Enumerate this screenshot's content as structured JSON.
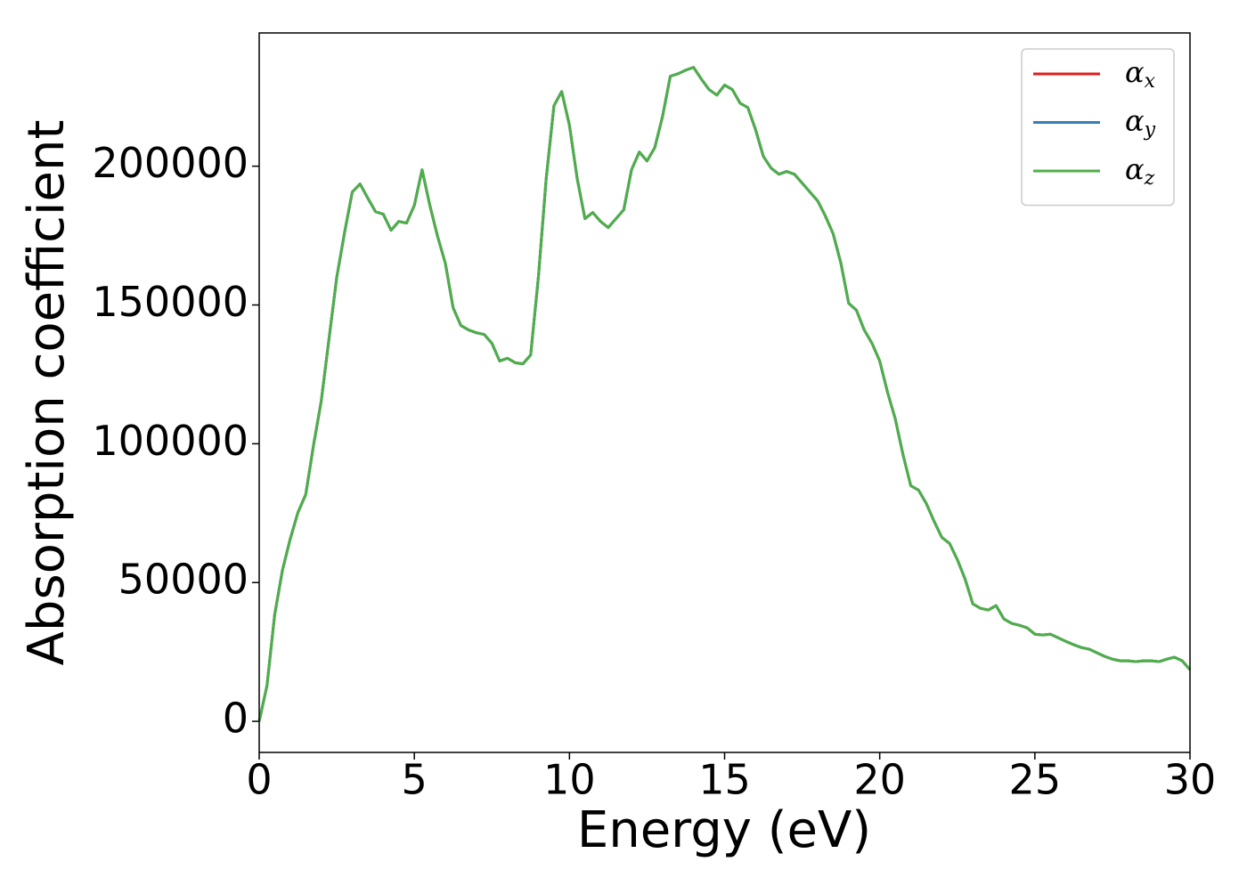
{
  "chart_data": {
    "type": "line",
    "x_label": "Energy (eV)",
    "y_label": "Absorption coefficient",
    "x": [
      0,
      0.25,
      0.5,
      0.75,
      1,
      1.25,
      1.5,
      1.75,
      2,
      2.25,
      2.5,
      2.75,
      3,
      3.25,
      3.5,
      3.75,
      4,
      4.25,
      4.5,
      4.75,
      5,
      5.25,
      5.5,
      5.75,
      6,
      6.25,
      6.5,
      6.75,
      7,
      7.25,
      7.5,
      7.75,
      8,
      8.25,
      8.5,
      8.75,
      9,
      9.25,
      9.5,
      9.75,
      10,
      10.25,
      10.5,
      10.75,
      11,
      11.25,
      11.5,
      11.75,
      12,
      12.25,
      12.5,
      12.75,
      13,
      13.25,
      13.5,
      13.75,
      14,
      14.25,
      14.5,
      14.75,
      15,
      15.25,
      15.5,
      15.75,
      16,
      16.25,
      16.5,
      16.75,
      17,
      17.25,
      17.5,
      17.75,
      18,
      18.25,
      18.5,
      18.75,
      19,
      19.25,
      19.5,
      19.75,
      20,
      20.25,
      20.5,
      20.75,
      21,
      21.25,
      21.5,
      21.75,
      22,
      22.25,
      22.5,
      22.75,
      23,
      23.25,
      23.5,
      23.75,
      24,
      24.25,
      24.5,
      24.75,
      25,
      25.25,
      25.5,
      25.75,
      26,
      26.25,
      26.5,
      26.75,
      27,
      27.25,
      27.5,
      27.75,
      28,
      28.25,
      28.5,
      28.75,
      29,
      29.25,
      29.5,
      29.75,
      30
    ],
    "series": [
      {
        "name": "αx",
        "color": "#e41a1c",
        "values": [
          0,
          12800,
          38500,
          54500,
          65700,
          75300,
          81700,
          99400,
          115400,
          137800,
          160000,
          176000,
          190700,
          193600,
          188500,
          183600,
          182700,
          176900,
          180100,
          179500,
          185900,
          198700,
          185900,
          174700,
          165000,
          149000,
          142600,
          141000,
          140000,
          139400,
          136200,
          129800,
          130800,
          129200,
          128800,
          132000,
          160200,
          195500,
          221800,
          226900,
          214700,
          195500,
          181100,
          183300,
          180100,
          177900,
          181100,
          184300,
          198700,
          205100,
          201900,
          206700,
          217900,
          232400,
          233300,
          234600,
          235600,
          231400,
          227600,
          225600,
          229200,
          227600,
          222700,
          221100,
          213100,
          203500,
          199300,
          197100,
          198100,
          197100,
          193900,
          190700,
          187500,
          182000,
          175600,
          165000,
          150600,
          148100,
          141000,
          136200,
          129800,
          118600,
          109000,
          96100,
          84900,
          83300,
          78500,
          72100,
          66300,
          64100,
          58300,
          51300,
          42300,
          40700,
          40100,
          41700,
          36900,
          35300,
          34600,
          33700,
          31400,
          31100,
          31400,
          30100,
          28800,
          27600,
          26600,
          26000,
          24700,
          23400,
          22400,
          21800,
          21800,
          21500,
          21800,
          21800,
          21500,
          22400,
          23100,
          21800,
          18600
        ]
      },
      {
        "name": "αy",
        "color": "#377eb8",
        "values": [
          0,
          12800,
          38500,
          54500,
          65700,
          75300,
          81700,
          99400,
          115400,
          137800,
          160000,
          176000,
          190700,
          193600,
          188500,
          183600,
          182700,
          176900,
          180100,
          179500,
          185900,
          198700,
          185900,
          174700,
          165000,
          149000,
          142600,
          141000,
          140000,
          139400,
          136200,
          129800,
          130800,
          129200,
          128800,
          132000,
          160200,
          195500,
          221800,
          226900,
          214700,
          195500,
          181100,
          183300,
          180100,
          177900,
          181100,
          184300,
          198700,
          205100,
          201900,
          206700,
          217900,
          232400,
          233300,
          234600,
          235600,
          231400,
          227600,
          225600,
          229200,
          227600,
          222700,
          221100,
          213100,
          203500,
          199300,
          197100,
          198100,
          197100,
          193900,
          190700,
          187500,
          182000,
          175600,
          165000,
          150600,
          148100,
          141000,
          136200,
          129800,
          118600,
          109000,
          96100,
          84900,
          83300,
          78500,
          72100,
          66300,
          64100,
          58300,
          51300,
          42300,
          40700,
          40100,
          41700,
          36900,
          35300,
          34600,
          33700,
          31400,
          31100,
          31400,
          30100,
          28800,
          27600,
          26600,
          26000,
          24700,
          23400,
          22400,
          21800,
          21800,
          21500,
          21800,
          21800,
          21500,
          22400,
          23100,
          21800,
          18600
        ]
      },
      {
        "name": "αz",
        "color": "#4daf4a",
        "values": [
          0,
          12800,
          38500,
          54500,
          65700,
          75300,
          81700,
          99400,
          115400,
          137800,
          160000,
          176000,
          190700,
          193600,
          188500,
          183600,
          182700,
          176900,
          180100,
          179500,
          185900,
          198700,
          185900,
          174700,
          165000,
          149000,
          142600,
          141000,
          140000,
          139400,
          136200,
          129800,
          130800,
          129200,
          128800,
          132000,
          160200,
          195500,
          221800,
          226900,
          214700,
          195500,
          181100,
          183300,
          180100,
          177900,
          181100,
          184300,
          198700,
          205100,
          201900,
          206700,
          217900,
          232400,
          233300,
          234600,
          235600,
          231400,
          227600,
          225600,
          229200,
          227600,
          222700,
          221100,
          213100,
          203500,
          199300,
          197100,
          198100,
          197100,
          193900,
          190700,
          187500,
          182000,
          175600,
          165000,
          150600,
          148100,
          141000,
          136200,
          129800,
          118600,
          109000,
          96100,
          84900,
          83300,
          78500,
          72100,
          66300,
          64100,
          58300,
          51300,
          42300,
          40700,
          40100,
          41700,
          36900,
          35300,
          34600,
          33700,
          31400,
          31100,
          31400,
          30100,
          28800,
          27600,
          26600,
          26000,
          24700,
          23400,
          22400,
          21800,
          21800,
          21500,
          21800,
          21800,
          21500,
          22400,
          23100,
          21800,
          18600
        ]
      }
    ],
    "xlim": [
      0,
      30
    ],
    "xticks": [
      0,
      5,
      10,
      15,
      20,
      25,
      30
    ],
    "ylim": [
      -11200,
      248000
    ],
    "yticks": [
      0,
      50000,
      100000,
      150000,
      200000
    ],
    "legend": "upper right"
  }
}
